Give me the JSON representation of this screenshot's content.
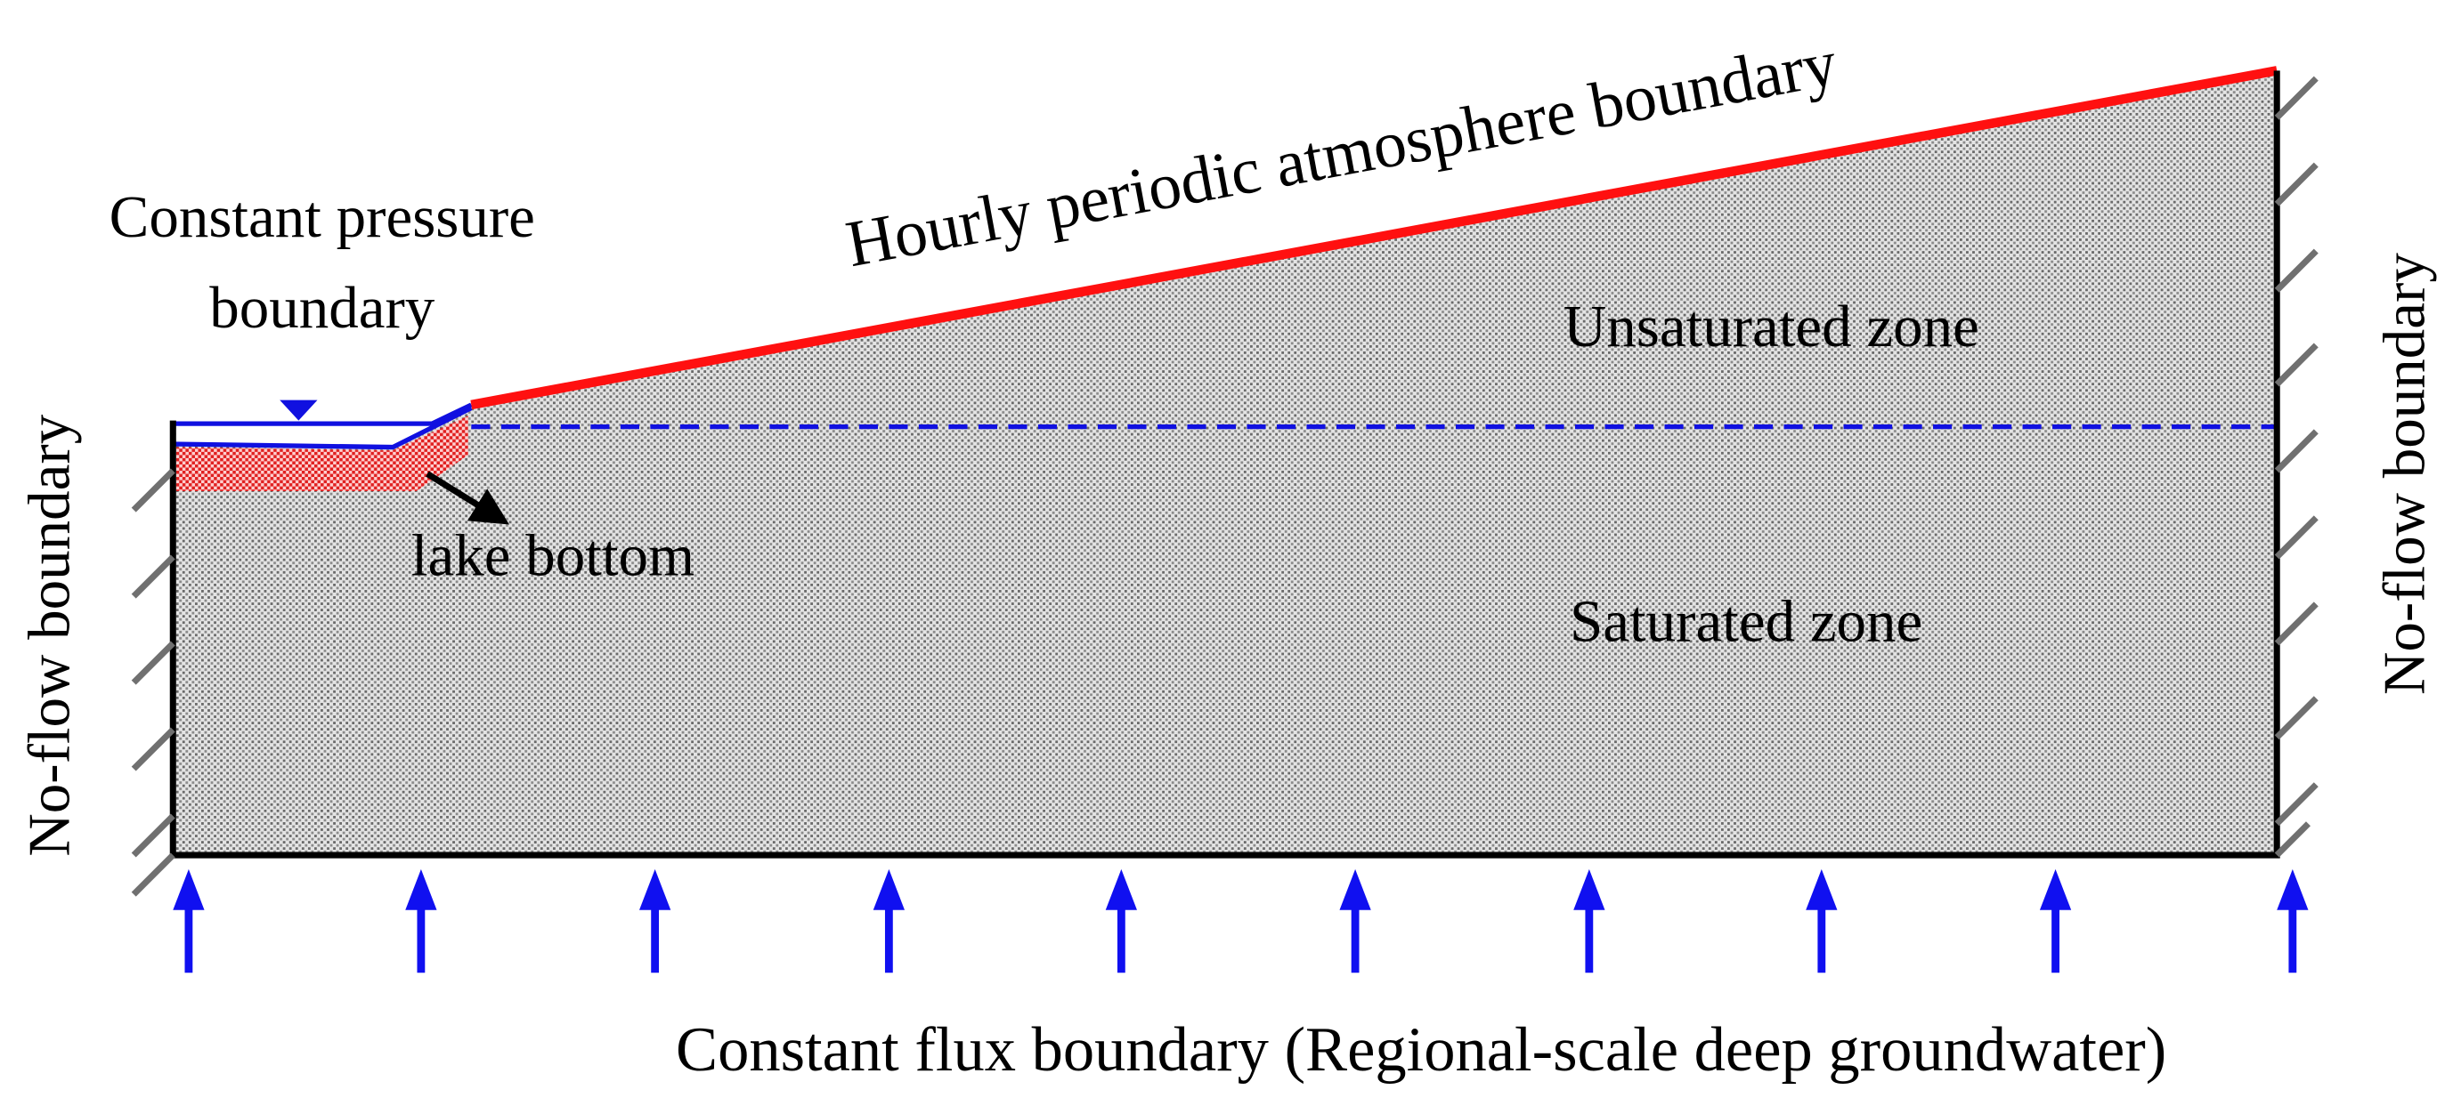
{
  "labels": {
    "top_boundary": "Hourly periodic atmosphere boundary",
    "lake_boundary_line1": "Constant pressure",
    "lake_boundary_line2": "boundary",
    "left_boundary": "No-flow boundary",
    "right_boundary": "No-flow boundary",
    "unsaturated": "Unsaturated zone",
    "saturated": "Saturated zone",
    "lake_bottom": "lake bottom",
    "bottom_boundary": "Constant flux boundary (Regional-scale deep groundwater)"
  }
}
